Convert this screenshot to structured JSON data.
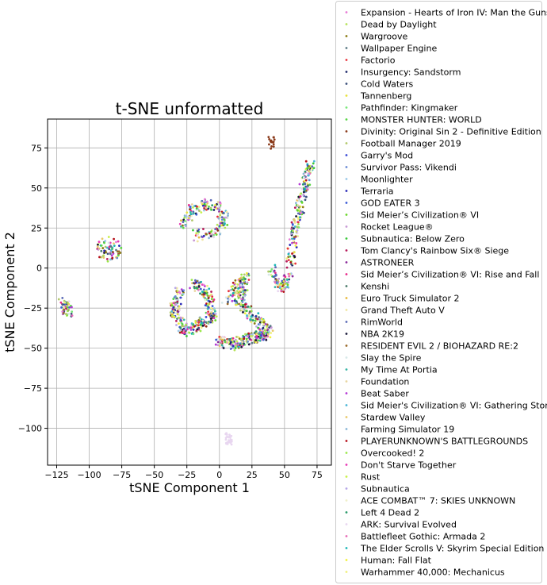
{
  "chart_data": {
    "type": "scatter",
    "title": "t-SNE unformatted",
    "xlabel": "tSNE Component 1",
    "ylabel": "tSNE Component 2",
    "xlim": [
      -132,
      86
    ],
    "ylim": [
      -123,
      93
    ],
    "xticks": [
      -125,
      -100,
      -75,
      -50,
      -25,
      0,
      25,
      50,
      75
    ],
    "yticks": [
      -100,
      -75,
      -50,
      -25,
      0,
      25,
      50,
      75
    ],
    "xtick_labels": [
      "−125",
      "−100",
      "−75",
      "−50",
      "−25",
      "0",
      "25",
      "50",
      "75"
    ],
    "ytick_labels": [
      "−100",
      "−75",
      "−50",
      "−25",
      "0",
      "25",
      "50",
      "75"
    ],
    "grid": true,
    "legend_position": "outside-right",
    "series": [
      {
        "name": "Expansion - Hearts of Iron IV: Man the Guns",
        "color": "#e87cd6"
      },
      {
        "name": "Dead by Daylight",
        "color": "#b6e25a"
      },
      {
        "name": "Wargroove",
        "color": "#8a7a12"
      },
      {
        "name": "Wallpaper Engine",
        "color": "#5b7a85"
      },
      {
        "name": "Factorio",
        "color": "#e8343c"
      },
      {
        "name": "Insurgency: Sandstorm",
        "color": "#1f2a6b"
      },
      {
        "name": "Cold Waters",
        "color": "#3a4f7a"
      },
      {
        "name": "Tannenberg",
        "color": "#e8e23a"
      },
      {
        "name": "Pathfinder: Kingmaker",
        "color": "#7ae87a"
      },
      {
        "name": "MONSTER HUNTER: WORLD",
        "color": "#5ad648"
      },
      {
        "name": "Divinity: Original Sin 2 - Definitive Edition",
        "color": "#8a3a1a"
      },
      {
        "name": "Football Manager 2019",
        "color": "#b2c86a"
      },
      {
        "name": "Garry's Mod",
        "color": "#3a4ad6"
      },
      {
        "name": "Survivor Pass: Vikendi",
        "color": "#6a8ad6"
      },
      {
        "name": "Moonlighter",
        "color": "#9ac8e8"
      },
      {
        "name": "Terraria",
        "color": "#2a2ab6"
      },
      {
        "name": "GOD EATER 3",
        "color": "#3a5ad6"
      },
      {
        "name": "Sid Meier’s Civilization® VI",
        "color": "#6ad62a"
      },
      {
        "name": "Rocket League®",
        "color": "#c89ad6"
      },
      {
        "name": "Subnautica: Below Zero",
        "color": "#3ac83a"
      },
      {
        "name": "Tom Clancy's Rainbow Six® Siege",
        "color": "#b61a5a"
      },
      {
        "name": "ASTRONEER",
        "color": "#8a2a9a"
      },
      {
        "name": "Sid Meier’s Civilization® VI: Rise and Fall",
        "color": "#e82a8a"
      },
      {
        "name": "Kenshi",
        "color": "#4a7a6a"
      },
      {
        "name": "Euro Truck Simulator 2",
        "color": "#e8b83a"
      },
      {
        "name": "Grand Theft Auto V",
        "color": "#f0e6a0"
      },
      {
        "name": "RimWorld",
        "color": "#5a6ab6"
      },
      {
        "name": "NBA 2K19",
        "color": "#1a1a3a"
      },
      {
        "name": "RESIDENT EVIL 2 / BIOHAZARD RE:2",
        "color": "#9a6a2a"
      },
      {
        "name": "Slay the Spire",
        "color": "#d6e8e8"
      },
      {
        "name": "My Time At Portia",
        "color": "#3ab6a6"
      },
      {
        "name": "Foundation",
        "color": "#e8d6a0"
      },
      {
        "name": "Beat Saber",
        "color": "#b63ad6"
      },
      {
        "name": "Sid Meier's Civilization® VI: Gathering Storm",
        "color": "#4ab6d6"
      },
      {
        "name": "Stardew Valley",
        "color": "#e8c86a"
      },
      {
        "name": "Farming Simulator 19",
        "color": "#8ab6d6"
      },
      {
        "name": "PLAYERUNKNOWN'S BATTLEGROUNDS",
        "color": "#b6101a"
      },
      {
        "name": "Overcooked! 2",
        "color": "#9ae84a"
      },
      {
        "name": "Don't Starve Together",
        "color": "#e83ab6"
      },
      {
        "name": "Rust",
        "color": "#c8f04a"
      },
      {
        "name": "Subnautica",
        "color": "#b6a6e8"
      },
      {
        "name": "ACE COMBAT™ 7: SKIES UNKNOWN",
        "color": "#f0f0c8"
      },
      {
        "name": "Left 4 Dead 2",
        "color": "#2a9a6a"
      },
      {
        "name": "ARK: Survival Evolved",
        "color": "#e8d6f0"
      },
      {
        "name": "Battlefleet Gothic: Armada 2",
        "color": "#e86ab6"
      },
      {
        "name": "The Elder Scrolls V: Skyrim Special Edition",
        "color": "#1ab6b6"
      },
      {
        "name": "Human: Fall Flat",
        "color": "#f0f03a"
      },
      {
        "name": "Warhammer 40,000: Mechanicus",
        "color": "#f0f07a"
      }
    ],
    "point_clusters": [
      {
        "series": "mixed",
        "shape": "arc",
        "points_approx": [
          [
            -120,
            -20
          ],
          [
            -118,
            -24
          ],
          [
            -116,
            -28
          ]
        ]
      },
      {
        "series": "mixed",
        "shape": "ring",
        "center": [
          -85,
          12
        ],
        "radius": 8
      },
      {
        "series": "mixed",
        "shape": "arc",
        "points_approx": [
          [
            -28,
            25
          ],
          [
            -22,
            35
          ],
          [
            -12,
            40
          ],
          [
            0,
            38
          ],
          [
            5,
            30
          ],
          [
            -5,
            22
          ],
          [
            -20,
            20
          ]
        ]
      },
      {
        "series": "mixed",
        "shape": "band",
        "points_approx": [
          [
            -30,
            -15
          ],
          [
            -35,
            -25
          ],
          [
            -28,
            -40
          ],
          [
            -15,
            -35
          ],
          [
            -5,
            -30
          ],
          [
            -10,
            -15
          ],
          [
            -20,
            -10
          ]
        ]
      },
      {
        "series": "mixed",
        "shape": "band",
        "points_approx": [
          [
            0,
            -45
          ],
          [
            10,
            -48
          ],
          [
            20,
            -45
          ],
          [
            30,
            -43
          ],
          [
            38,
            -40
          ],
          [
            25,
            -30
          ],
          [
            15,
            -20
          ],
          [
            20,
            -5
          ],
          [
            5,
            -20
          ]
        ]
      },
      {
        "series": "mixed",
        "shape": "arc",
        "points_approx": [
          [
            40,
            0
          ],
          [
            45,
            -10
          ],
          [
            50,
            -12
          ],
          [
            55,
            5
          ],
          [
            57,
            20
          ],
          [
            60,
            30
          ],
          [
            62,
            40
          ],
          [
            65,
            50
          ],
          [
            68,
            58
          ],
          [
            70,
            65
          ]
        ]
      },
      {
        "series": "Divinity: Original Sin 2 - Definitive Edition",
        "shape": "blob",
        "center": [
          40,
          78
        ]
      },
      {
        "series": "ARK: Survival Evolved",
        "shape": "blob",
        "center": [
          7,
          -107
        ]
      }
    ]
  }
}
